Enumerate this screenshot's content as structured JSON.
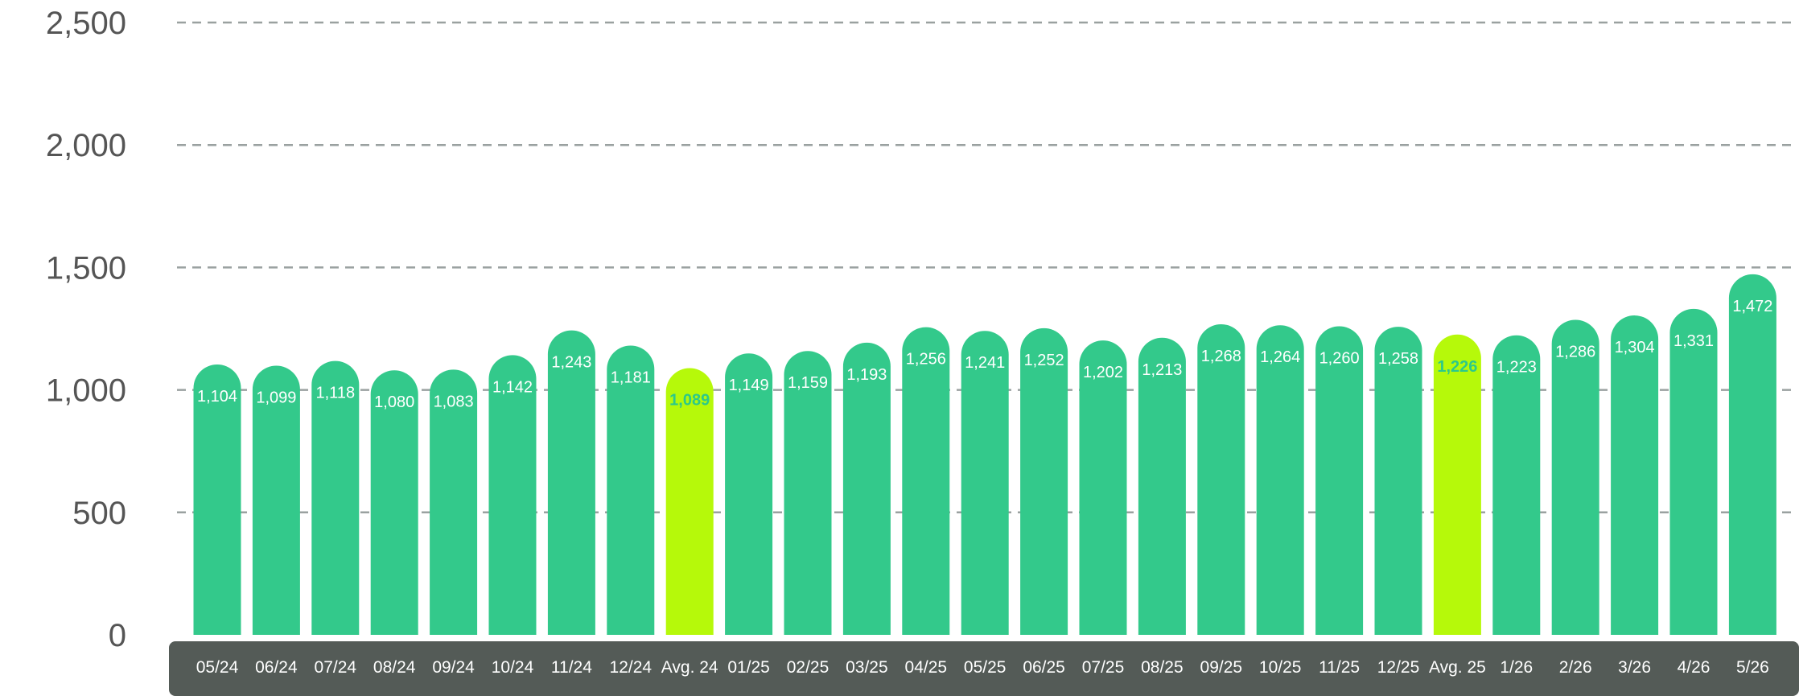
{
  "chart_data": {
    "type": "bar",
    "categories": [
      "05/24",
      "06/24",
      "07/24",
      "08/24",
      "09/24",
      "10/24",
      "11/24",
      "12/24",
      "Avg. 24",
      "01/25",
      "02/25",
      "03/25",
      "04/25",
      "05/25",
      "06/25",
      "07/25",
      "08/25",
      "09/25",
      "10/25",
      "11/25",
      "12/25",
      "Avg. 25",
      "1/26",
      "2/26",
      "3/26",
      "4/26",
      "5/26"
    ],
    "values": [
      1104,
      1099,
      1118,
      1080,
      1083,
      1142,
      1243,
      1181,
      1089,
      1149,
      1159,
      1193,
      1256,
      1241,
      1252,
      1202,
      1213,
      1268,
      1264,
      1260,
      1258,
      1226,
      1223,
      1286,
      1304,
      1331,
      1472
    ],
    "value_labels": [
      "1,104",
      "1,099",
      "1,118",
      "1,080",
      "1,083",
      "1,142",
      "1,243",
      "1,181",
      "1,089",
      "1,149",
      "1,159",
      "1,193",
      "1,256",
      "1,241",
      "1,252",
      "1,202",
      "1,213",
      "1,268",
      "1,264",
      "1,260",
      "1,258",
      "1,226",
      "1,223",
      "1,286",
      "1,304",
      "1,331",
      "1,472"
    ],
    "highlighted": [
      "Avg. 24",
      "Avg. 25"
    ],
    "ylim": [
      0,
      2500
    ],
    "yticks": [
      0,
      500,
      1000,
      1500,
      2000,
      2500
    ],
    "ytick_labels": [
      "0",
      "500",
      "1,000",
      "1,500",
      "2,000",
      "2,500"
    ],
    "title": "",
    "xlabel": "",
    "ylabel": "",
    "grid": true,
    "grid_style": "dashed",
    "legend": "none"
  },
  "colors": {
    "bar": "#33c98b",
    "bar_highlight": "#b6f90a",
    "highlight_label": "#2cc98a",
    "grid": "#9aa1a0",
    "axis_band": "#545b57",
    "tick_text": "#555555"
  }
}
